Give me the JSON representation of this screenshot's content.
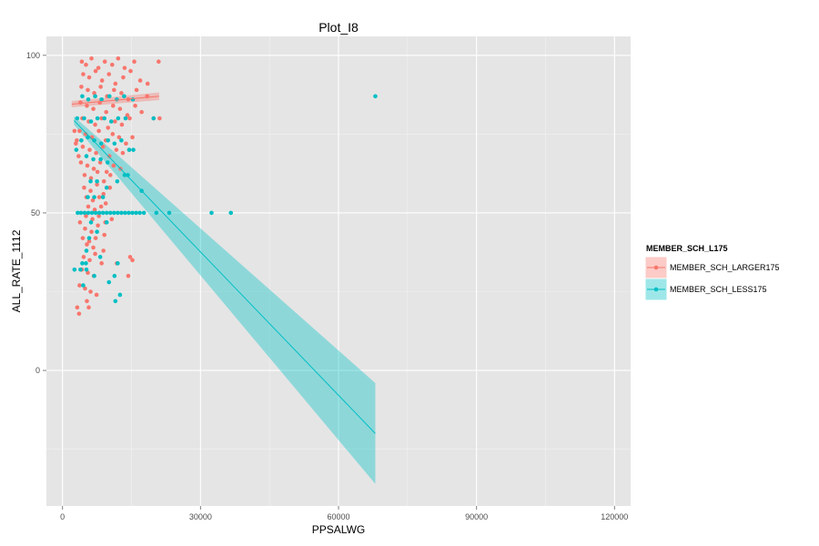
{
  "chart_data": {
    "type": "scatter",
    "title": "Plot_I8",
    "xlabel": "PPSALWG",
    "ylabel": "ALL_RATE_1112",
    "xlim": [
      -3500,
      123500
    ],
    "ylim": [
      -43,
      106
    ],
    "x_ticks": [
      0,
      30000,
      60000,
      90000,
      120000
    ],
    "x_tick_labels": [
      "0",
      "30000",
      "60000",
      "90000",
      "120000"
    ],
    "y_ticks": [
      0,
      50,
      100
    ],
    "y_tick_labels": [
      "0",
      "50",
      "100"
    ],
    "grid": true,
    "legend": {
      "title": "MEMBER_SCH_L175",
      "placement": "right",
      "entries": [
        "MEMBER_SCH_LARGER175",
        "MEMBER_SCH_LESS175"
      ]
    },
    "series": [
      {
        "name": "MEMBER_SCH_LARGER175",
        "color": "#F8766D",
        "points": [
          [
            4200,
            98
          ],
          [
            5100,
            97
          ],
          [
            6300,
            99
          ],
          [
            7800,
            96
          ],
          [
            9200,
            98
          ],
          [
            10800,
            97
          ],
          [
            12100,
            99
          ],
          [
            13500,
            96
          ],
          [
            15600,
            98
          ],
          [
            20900,
            98
          ],
          [
            4500,
            94
          ],
          [
            5800,
            93
          ],
          [
            7200,
            95
          ],
          [
            8600,
            92
          ],
          [
            10100,
            94
          ],
          [
            11500,
            91
          ],
          [
            13200,
            93
          ],
          [
            14800,
            95
          ],
          [
            16900,
            92
          ],
          [
            18500,
            91
          ],
          [
            4100,
            90
          ],
          [
            5500,
            89
          ],
          [
            6900,
            88
          ],
          [
            8300,
            90
          ],
          [
            9700,
            87
          ],
          [
            11200,
            89
          ],
          [
            12800,
            88
          ],
          [
            14300,
            86
          ],
          [
            16100,
            89
          ],
          [
            18400,
            87
          ],
          [
            3900,
            85
          ],
          [
            5300,
            84
          ],
          [
            6700,
            83
          ],
          [
            8100,
            85
          ],
          [
            9500,
            82
          ],
          [
            11000,
            84
          ],
          [
            12500,
            83
          ],
          [
            14100,
            81
          ],
          [
            15800,
            84
          ],
          [
            17200,
            82
          ],
          [
            21100,
            80
          ],
          [
            4300,
            80
          ],
          [
            5700,
            79
          ],
          [
            7100,
            78
          ],
          [
            8500,
            80
          ],
          [
            9900,
            77
          ],
          [
            11400,
            79
          ],
          [
            12900,
            78
          ],
          [
            14600,
            80
          ],
          [
            19800,
            80
          ],
          [
            3700,
            76
          ],
          [
            5000,
            75
          ],
          [
            6400,
            74
          ],
          [
            7900,
            76
          ],
          [
            9400,
            73
          ],
          [
            10900,
            75
          ],
          [
            12300,
            74
          ],
          [
            13800,
            72
          ],
          [
            15200,
            74
          ],
          [
            2900,
            72
          ],
          [
            2600,
            76
          ],
          [
            3100,
            73
          ],
          [
            4400,
            71
          ],
          [
            5900,
            70
          ],
          [
            7300,
            69
          ],
          [
            8800,
            71
          ],
          [
            10200,
            68
          ],
          [
            11700,
            70
          ],
          [
            13100,
            69
          ],
          [
            14500,
            70
          ],
          [
            4000,
            66
          ],
          [
            5400,
            65
          ],
          [
            6800,
            64
          ],
          [
            8200,
            66
          ],
          [
            9600,
            63
          ],
          [
            11100,
            65
          ],
          [
            12600,
            64
          ],
          [
            3500,
            68
          ],
          [
            4800,
            62
          ],
          [
            6200,
            61
          ],
          [
            7600,
            63
          ],
          [
            9000,
            60
          ],
          [
            10400,
            62
          ],
          [
            4700,
            58
          ],
          [
            6100,
            57
          ],
          [
            7500,
            59
          ],
          [
            8900,
            56
          ],
          [
            10300,
            58
          ],
          [
            5200,
            55
          ],
          [
            6600,
            54
          ],
          [
            8000,
            55
          ],
          [
            9400,
            53
          ],
          [
            5600,
            52
          ],
          [
            7000,
            51
          ],
          [
            8400,
            52
          ],
          [
            5100,
            49
          ],
          [
            6500,
            48
          ],
          [
            7900,
            49
          ],
          [
            9300,
            47
          ],
          [
            10700,
            48
          ],
          [
            3800,
            47
          ],
          [
            4900,
            45
          ],
          [
            6300,
            44
          ],
          [
            7700,
            46
          ],
          [
            9100,
            43
          ],
          [
            4400,
            42
          ],
          [
            5800,
            41
          ],
          [
            7200,
            42
          ],
          [
            5300,
            40
          ],
          [
            6700,
            39
          ],
          [
            8900,
            38
          ],
          [
            4600,
            36
          ],
          [
            5900,
            35
          ],
          [
            7100,
            37
          ],
          [
            8500,
            34
          ],
          [
            14700,
            36
          ],
          [
            15200,
            35
          ],
          [
            11800,
            34
          ],
          [
            4200,
            32
          ],
          [
            5500,
            31
          ],
          [
            6800,
            30
          ],
          [
            14300,
            30
          ],
          [
            3700,
            27
          ],
          [
            4900,
            26
          ],
          [
            6100,
            25
          ],
          [
            7400,
            24
          ],
          [
            5300,
            22
          ],
          [
            3200,
            20
          ],
          [
            3600,
            18
          ],
          [
            5700,
            20
          ]
        ],
        "trend": {
          "x": [
            2000,
            21000
          ],
          "y": [
            84.5,
            87
          ],
          "ci_lower": [
            83.5,
            85.8
          ],
          "ci_upper": [
            85.5,
            88.2
          ]
        }
      },
      {
        "name": "MEMBER_SCH_LESS175",
        "color": "#00BFC4",
        "points": [
          [
            68000,
            87
          ],
          [
            4300,
            87
          ],
          [
            5600,
            86
          ],
          [
            7100,
            87
          ],
          [
            8500,
            86
          ],
          [
            10200,
            87
          ],
          [
            11800,
            86
          ],
          [
            13400,
            87
          ],
          [
            15300,
            86
          ],
          [
            3200,
            80
          ],
          [
            4700,
            80
          ],
          [
            6200,
            79
          ],
          [
            7600,
            80
          ],
          [
            9100,
            80
          ],
          [
            10600,
            79
          ],
          [
            12100,
            80
          ],
          [
            13700,
            80
          ],
          [
            19800,
            80
          ],
          [
            4100,
            73
          ],
          [
            5500,
            74
          ],
          [
            6900,
            73
          ],
          [
            8400,
            72
          ],
          [
            9900,
            73
          ],
          [
            11300,
            72
          ],
          [
            12800,
            73
          ],
          [
            14500,
            70
          ],
          [
            15400,
            70
          ],
          [
            3000,
            70
          ],
          [
            5200,
            68
          ],
          [
            6700,
            67
          ],
          [
            8300,
            67
          ],
          [
            9800,
            66
          ],
          [
            13500,
            62
          ],
          [
            14200,
            62
          ],
          [
            6100,
            60
          ],
          [
            7500,
            60
          ],
          [
            9600,
            58
          ],
          [
            11900,
            60
          ],
          [
            17200,
            57
          ],
          [
            5500,
            55
          ],
          [
            6900,
            55
          ],
          [
            8800,
            55
          ],
          [
            3300,
            50
          ],
          [
            4000,
            50
          ],
          [
            4800,
            50
          ],
          [
            5600,
            50
          ],
          [
            6400,
            50
          ],
          [
            7200,
            50
          ],
          [
            8000,
            50
          ],
          [
            8800,
            50
          ],
          [
            9600,
            50
          ],
          [
            10400,
            50
          ],
          [
            11200,
            50
          ],
          [
            12000,
            50
          ],
          [
            12800,
            50
          ],
          [
            13600,
            50
          ],
          [
            14400,
            50
          ],
          [
            15200,
            50
          ],
          [
            16000,
            50
          ],
          [
            16800,
            50
          ],
          [
            17700,
            50
          ],
          [
            20400,
            50
          ],
          [
            23200,
            50
          ],
          [
            32400,
            50
          ],
          [
            36600,
            50
          ],
          [
            6200,
            47
          ],
          [
            7500,
            44
          ],
          [
            9600,
            47
          ],
          [
            5800,
            42
          ],
          [
            5200,
            38
          ],
          [
            8200,
            36
          ],
          [
            4300,
            34
          ],
          [
            5100,
            34
          ],
          [
            12000,
            34
          ],
          [
            2600,
            32
          ],
          [
            3900,
            32
          ],
          [
            5200,
            32
          ],
          [
            11300,
            30
          ],
          [
            6900,
            30
          ],
          [
            4500,
            27
          ],
          [
            10100,
            28
          ],
          [
            12500,
            24
          ],
          [
            11500,
            22
          ]
        ],
        "trend": {
          "x": [
            2500,
            68000
          ],
          "y": [
            79.3,
            -20
          ],
          "ci_lower": [
            78.0,
            -36
          ],
          "ci_upper": [
            80.6,
            -4
          ]
        }
      }
    ]
  }
}
